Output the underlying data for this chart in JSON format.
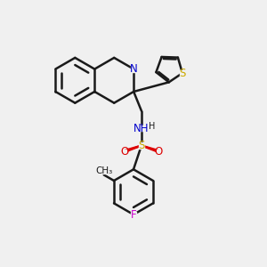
{
  "bg_color": "#f0f0f0",
  "bond_color": "#1a1a1a",
  "bond_width": 1.8,
  "atom_colors": {
    "N": "#0000cc",
    "NH": "#0000cc",
    "S": "#ccaa00",
    "O": "#dd0000",
    "F": "#cc00cc",
    "C": "#1a1a1a"
  },
  "fs": 8.5
}
